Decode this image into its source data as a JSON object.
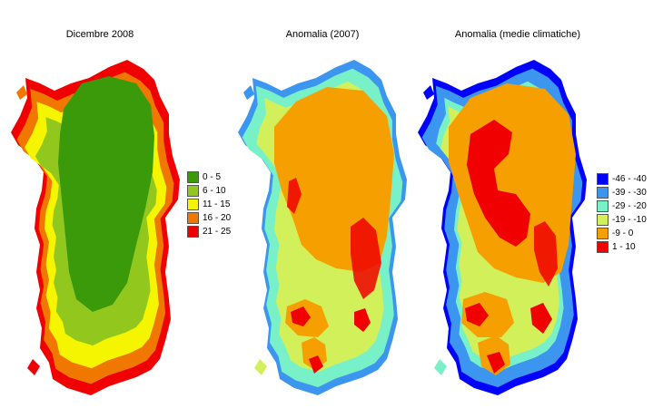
{
  "titles": {
    "panel1": "Dicembre 2008",
    "panel2": "Anomalia (2007)",
    "panel3": "Anomalia (medie climatiche)"
  },
  "legend1": [
    {
      "label": "0 - 5",
      "color": "#3a9a0a"
    },
    {
      "label": "6 - 10",
      "color": "#92c81e"
    },
    {
      "label": "11 - 15",
      "color": "#f5f500"
    },
    {
      "label": "16 - 20",
      "color": "#f07800"
    },
    {
      "label": "21 - 25",
      "color": "#f00000"
    }
  ],
  "legend2": [
    {
      "label": "-46 - -40",
      "color": "#0000ff"
    },
    {
      "label": "-39 - -30",
      "color": "#3c96f0"
    },
    {
      "label": "-29 - -20",
      "color": "#78f0c8"
    },
    {
      "label": "-19 - -10",
      "color": "#d2f05a"
    },
    {
      "label": "-9 - 0",
      "color": "#f5a000"
    },
    {
      "label": "1 - 10",
      "color": "#f00000"
    }
  ]
}
